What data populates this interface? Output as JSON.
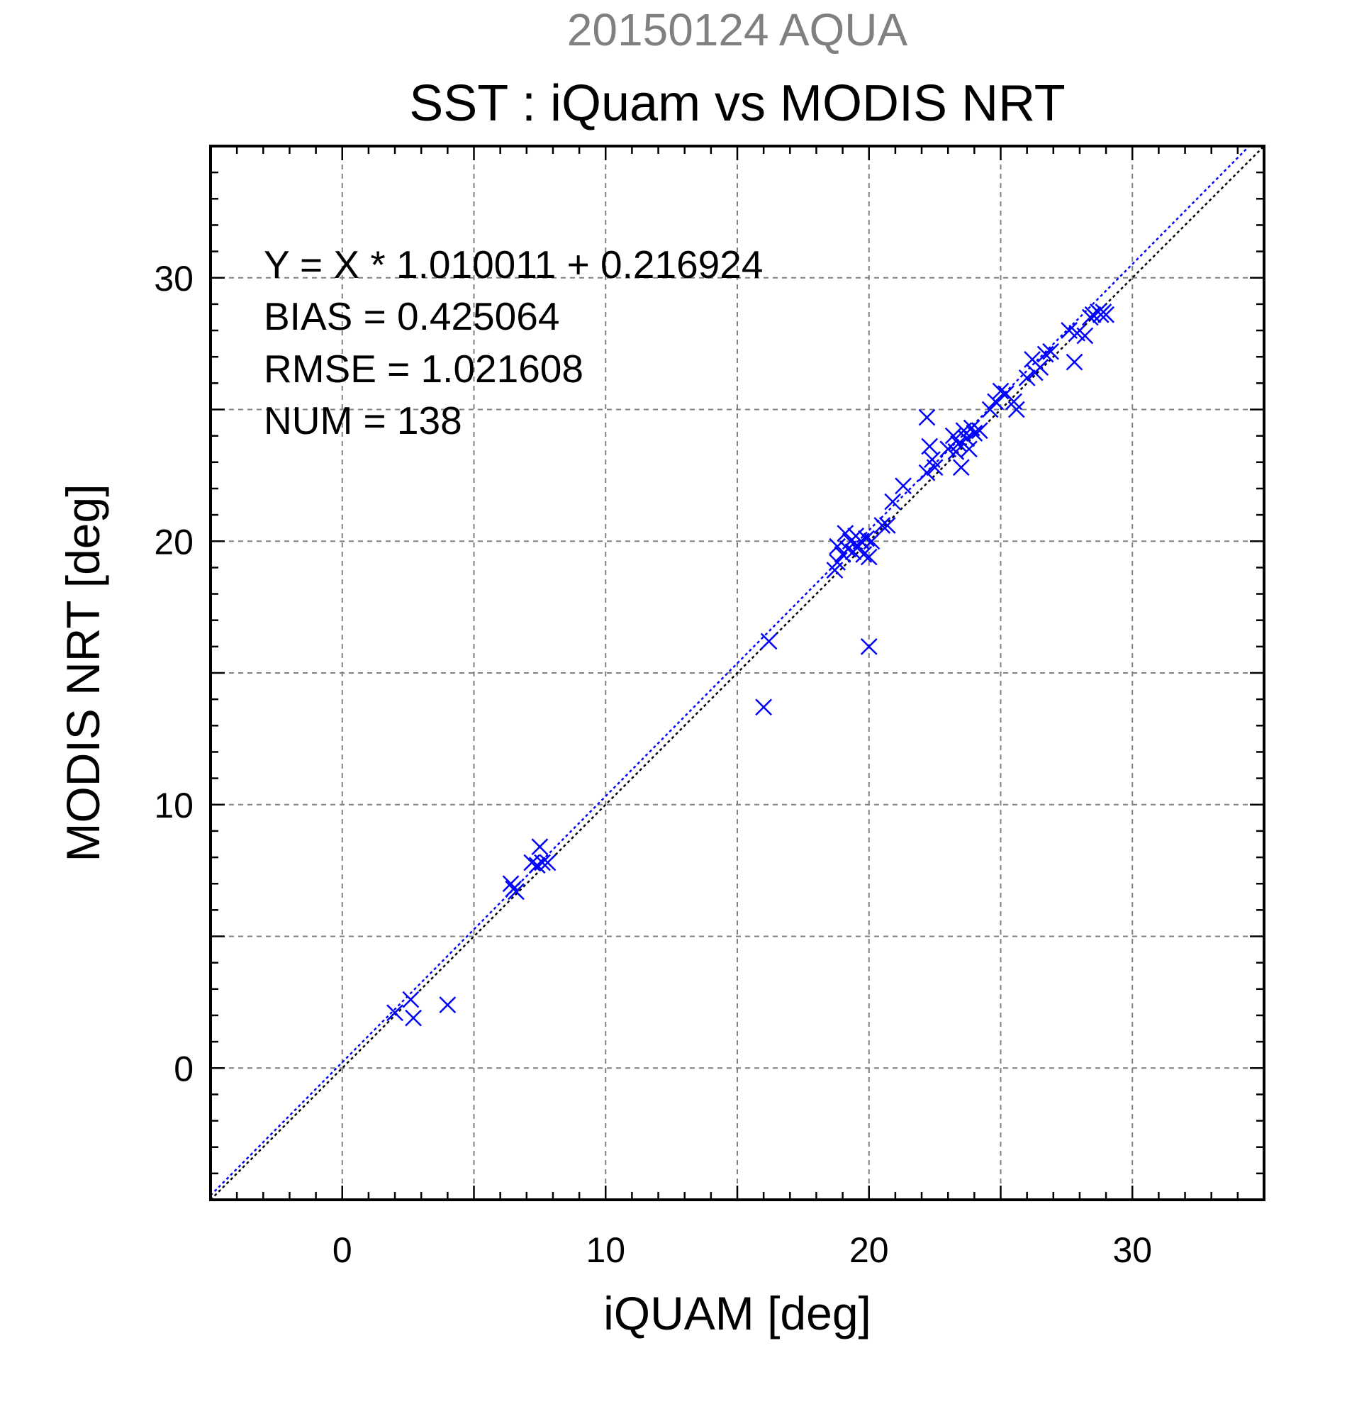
{
  "chart_data": {
    "type": "scatter",
    "suptitle": "20150124 AQUA",
    "title": "SST : iQuam vs MODIS NRT",
    "xlabel": "iQUAM [deg]",
    "ylabel": "MODIS NRT [deg]",
    "xlim": [
      -5,
      35
    ],
    "ylim": [
      -5,
      35
    ],
    "xticks": [
      0,
      10,
      20,
      30
    ],
    "yticks": [
      0,
      10,
      20,
      30
    ],
    "grid": true,
    "stats": [
      "Y = X * 1.010011 + 0.216924",
      "BIAS = 0.425064",
      "RMSE = 1.021608",
      "NUM = 138"
    ],
    "fit": {
      "slope": 1.010011,
      "intercept": 0.216924
    },
    "colors": {
      "points": "#0000ff",
      "fit_line": "#0000ff",
      "identity_line": "#000000",
      "grid": "#808080"
    },
    "series": [
      {
        "marker": "x",
        "points": [
          [
            2.0,
            2.1
          ],
          [
            2.6,
            2.6
          ],
          [
            2.7,
            1.9
          ],
          [
            4.0,
            2.4
          ],
          [
            6.4,
            7.0
          ],
          [
            6.5,
            6.8
          ],
          [
            6.6,
            6.7
          ],
          [
            7.2,
            7.8
          ],
          [
            7.4,
            7.7
          ],
          [
            7.5,
            8.4
          ],
          [
            7.6,
            7.8
          ],
          [
            7.8,
            7.8
          ],
          [
            16.0,
            13.7
          ],
          [
            16.2,
            16.2
          ],
          [
            20.0,
            16.0
          ],
          [
            18.7,
            18.9
          ],
          [
            18.8,
            19.2
          ],
          [
            18.8,
            19.8
          ],
          [
            19.0,
            19.5
          ],
          [
            19.1,
            20.3
          ],
          [
            19.2,
            19.7
          ],
          [
            19.3,
            20.0
          ],
          [
            19.4,
            19.6
          ],
          [
            19.5,
            20.2
          ],
          [
            19.6,
            19.8
          ],
          [
            19.7,
            20.0
          ],
          [
            19.8,
            19.5
          ],
          [
            19.9,
            20.1
          ],
          [
            20.0,
            19.4
          ],
          [
            20.1,
            20.0
          ],
          [
            20.5,
            20.6
          ],
          [
            20.7,
            20.6
          ],
          [
            20.9,
            21.5
          ],
          [
            21.3,
            22.1
          ],
          [
            22.2,
            22.6
          ],
          [
            22.2,
            24.7
          ],
          [
            22.3,
            23.6
          ],
          [
            22.4,
            23.1
          ],
          [
            22.5,
            22.8
          ],
          [
            23.0,
            23.5
          ],
          [
            23.2,
            24.0
          ],
          [
            23.3,
            23.4
          ],
          [
            23.4,
            23.7
          ],
          [
            23.5,
            22.8
          ],
          [
            23.6,
            24.2
          ],
          [
            23.7,
            23.9
          ],
          [
            23.8,
            23.5
          ],
          [
            23.9,
            24.3
          ],
          [
            24.0,
            24.1
          ],
          [
            24.2,
            24.2
          ],
          [
            24.6,
            25.0
          ],
          [
            24.8,
            25.3
          ],
          [
            25.0,
            25.7
          ],
          [
            25.2,
            25.6
          ],
          [
            25.5,
            25.3
          ],
          [
            25.6,
            25.0
          ],
          [
            26.0,
            26.2
          ],
          [
            26.2,
            26.9
          ],
          [
            26.3,
            26.4
          ],
          [
            26.5,
            26.6
          ],
          [
            26.7,
            27.1
          ],
          [
            26.9,
            27.2
          ],
          [
            27.6,
            28.0
          ],
          [
            27.8,
            26.8
          ],
          [
            27.9,
            27.9
          ],
          [
            28.2,
            27.8
          ],
          [
            28.4,
            28.5
          ],
          [
            28.5,
            28.6
          ],
          [
            28.7,
            28.7
          ],
          [
            28.8,
            28.6
          ],
          [
            28.9,
            28.7
          ],
          [
            29.0,
            28.6
          ]
        ]
      }
    ]
  }
}
